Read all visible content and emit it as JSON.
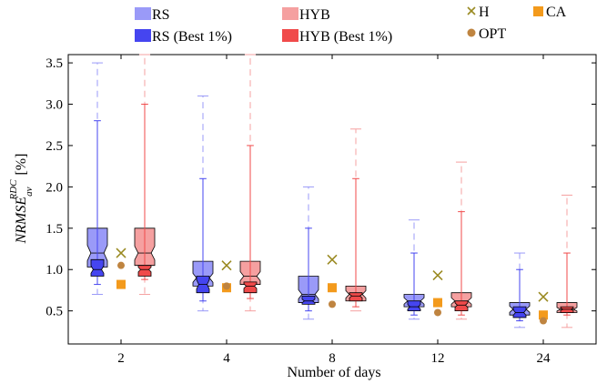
{
  "chart_data": {
    "type": "box",
    "categories": [
      "2",
      "4",
      "8",
      "12",
      "24"
    ],
    "xlabel": "Number of days",
    "ylabel_main": "NRMSE",
    "ylabel_sup": "RDC",
    "ylabel_sub": "av",
    "ylabel_unit": "[%]",
    "ylim": [
      0.1,
      3.6
    ],
    "yticks": [
      0.5,
      1.0,
      1.5,
      2.0,
      2.5,
      3.0,
      3.5
    ],
    "ytick_labels": [
      "0.5",
      "1.0",
      "1.5",
      "2.0",
      "2.5",
      "3.0",
      "3.5"
    ],
    "grid": false,
    "legend_placement": "top",
    "colors": {
      "rs": "#9a9af8",
      "rs_best": "#4545f0",
      "hyb": "#f5a0a0",
      "hyb_best": "#f04a4a",
      "h": "#9a8a22",
      "ca": "#f39a1c",
      "opt": "#bf8440",
      "outline": "#000000"
    },
    "legend": {
      "rs": "RS",
      "rs_best": "RS (Best 1%)",
      "hyb": "HYB",
      "hyb_best": "HYB (Best 1%)",
      "h": "H",
      "ca": "CA",
      "opt": "OPT"
    },
    "series": [
      {
        "key": "rs",
        "name": "RS",
        "boxes": [
          {
            "whislo": 0.7,
            "q1": 1.03,
            "med": 1.2,
            "q3": 1.5,
            "whishi": 3.5
          },
          {
            "whislo": 0.5,
            "q1": 0.8,
            "med": 0.9,
            "q3": 1.1,
            "whishi": 3.1
          },
          {
            "whislo": 0.4,
            "q1": 0.6,
            "med": 0.7,
            "q3": 0.92,
            "whishi": 2.0
          },
          {
            "whislo": 0.4,
            "q1": 0.55,
            "med": 0.62,
            "q3": 0.7,
            "whishi": 1.6
          },
          {
            "whislo": 0.3,
            "q1": 0.45,
            "med": 0.52,
            "q3": 0.6,
            "whishi": 1.2
          }
        ]
      },
      {
        "key": "rs_best",
        "name": "RS (Best 1%)",
        "boxes": [
          {
            "whislo": 0.82,
            "q1": 0.92,
            "med": 1.0,
            "q3": 1.12,
            "whishi": 2.8
          },
          {
            "whislo": 0.62,
            "q1": 0.72,
            "med": 0.82,
            "q3": 0.92,
            "whishi": 2.1
          },
          {
            "whislo": 0.5,
            "q1": 0.58,
            "med": 0.62,
            "q3": 0.68,
            "whishi": 1.5
          },
          {
            "whislo": 0.45,
            "q1": 0.5,
            "med": 0.55,
            "q3": 0.62,
            "whishi": 1.2
          },
          {
            "whislo": 0.38,
            "q1": 0.42,
            "med": 0.48,
            "q3": 0.55,
            "whishi": 1.0
          }
        ]
      },
      {
        "key": "hyb",
        "name": "HYB",
        "boxes": [
          {
            "whislo": 0.7,
            "q1": 1.05,
            "med": 1.2,
            "q3": 1.5,
            "whishi": 3.6
          },
          {
            "whislo": 0.5,
            "q1": 0.82,
            "med": 0.92,
            "q3": 1.1,
            "whishi": 3.6
          },
          {
            "whislo": 0.5,
            "q1": 0.62,
            "med": 0.7,
            "q3": 0.8,
            "whishi": 2.7
          },
          {
            "whislo": 0.4,
            "q1": 0.55,
            "med": 0.62,
            "q3": 0.72,
            "whishi": 2.3
          },
          {
            "whislo": 0.3,
            "q1": 0.48,
            "med": 0.52,
            "q3": 0.6,
            "whishi": 1.9
          }
        ]
      },
      {
        "key": "hyb_best",
        "name": "HYB (Best 1%)",
        "boxes": [
          {
            "whislo": 0.88,
            "q1": 0.92,
            "med": 1.0,
            "q3": 1.05,
            "whishi": 3.0
          },
          {
            "whislo": 0.65,
            "q1": 0.72,
            "med": 0.8,
            "q3": 0.85,
            "whishi": 2.5
          },
          {
            "whislo": 0.55,
            "q1": 0.62,
            "med": 0.68,
            "q3": 0.72,
            "whishi": 2.1
          },
          {
            "whislo": 0.45,
            "q1": 0.5,
            "med": 0.57,
            "q3": 0.62,
            "whishi": 1.7
          },
          {
            "whislo": 0.45,
            "q1": 0.48,
            "med": 0.52,
            "q3": 0.55,
            "whishi": 1.2
          }
        ]
      }
    ],
    "points": [
      {
        "key": "h",
        "name": "H",
        "values": [
          1.2,
          1.05,
          1.12,
          0.93,
          0.67
        ]
      },
      {
        "key": "ca",
        "name": "CA",
        "values": [
          0.82,
          0.78,
          0.78,
          0.6,
          0.45
        ]
      },
      {
        "key": "opt",
        "name": "OPT",
        "values": [
          1.05,
          0.8,
          0.58,
          0.48,
          0.38
        ]
      }
    ]
  }
}
